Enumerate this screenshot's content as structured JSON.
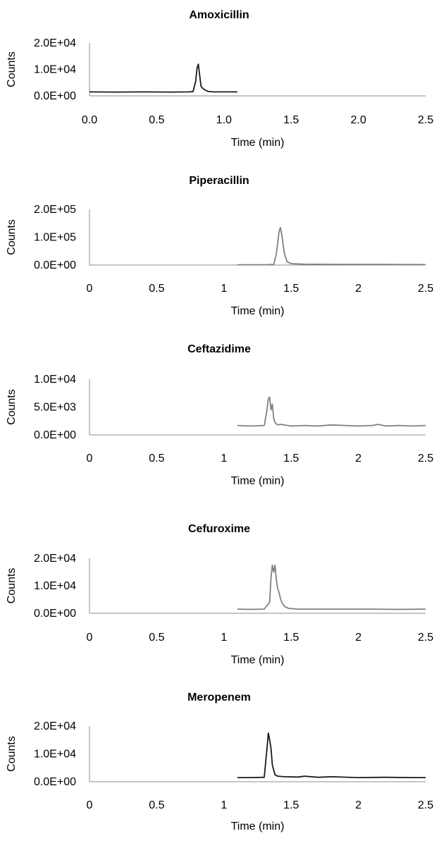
{
  "chart_data": [
    {
      "type": "line",
      "title": "Amoxicillin",
      "xlabel": "Time (min)",
      "ylabel": "Counts",
      "xlim": [
        0,
        2.5
      ],
      "ylim": [
        0,
        20000
      ],
      "x_tick_labels": [
        "0.0",
        "0.5",
        "1.0",
        "1.5",
        "2.0",
        "2.5"
      ],
      "y_tick_labels": [
        "0.0E+00",
        "1.0E+04",
        "2.0E+04"
      ],
      "line_color": "#1a1a1a",
      "series": [
        {
          "x": [
            0.0,
            0.2,
            0.4,
            0.6,
            0.74,
            0.77,
            0.79,
            0.8,
            0.81,
            0.82,
            0.83,
            0.85,
            0.88,
            0.92,
            1.0,
            1.1
          ],
          "y": [
            1500,
            1450,
            1500,
            1450,
            1500,
            1600,
            5500,
            10500,
            12000,
            7500,
            3500,
            2500,
            1700,
            1500,
            1500,
            1500
          ]
        }
      ]
    },
    {
      "type": "line",
      "title": "Piperacillin",
      "xlabel": "Time (min)",
      "ylabel": "Counts",
      "xlim": [
        0,
        2.5
      ],
      "ylim": [
        0,
        200000
      ],
      "x_tick_labels": [
        "0",
        "0.5",
        "1",
        "1.5",
        "2",
        "2.5"
      ],
      "y_tick_labels": [
        "0.0E+00",
        "1.0E+05",
        "2.0E+05"
      ],
      "line_color": "#808080",
      "series": [
        {
          "x": [
            1.1,
            1.3,
            1.37,
            1.39,
            1.41,
            1.42,
            1.43,
            1.45,
            1.47,
            1.5,
            1.6,
            1.8,
            2.0,
            2.2,
            2.5
          ],
          "y": [
            1000,
            1000,
            2000,
            40000,
            120000,
            135000,
            110000,
            40000,
            12000,
            5000,
            3000,
            2500,
            2000,
            2000,
            1500
          ]
        }
      ]
    },
    {
      "type": "line",
      "title": "Ceftazidime",
      "xlabel": "Time (min)",
      "ylabel": "Counts",
      "xlim": [
        0,
        2.5
      ],
      "ylim": [
        0,
        10000
      ],
      "x_tick_labels": [
        "0",
        "0.5",
        "1",
        "1.5",
        "2",
        "2.5"
      ],
      "y_tick_labels": [
        "0.0E+00",
        "5.0E+03",
        "1.0E+04"
      ],
      "line_color": "#808080",
      "series": [
        {
          "x": [
            1.1,
            1.2,
            1.3,
            1.32,
            1.33,
            1.34,
            1.35,
            1.36,
            1.37,
            1.38,
            1.4,
            1.42,
            1.5,
            1.6,
            1.7,
            1.8,
            1.9,
            2.0,
            2.1,
            2.15,
            2.2,
            2.3,
            2.4,
            2.5
          ],
          "y": [
            1700,
            1600,
            1700,
            4500,
            6500,
            6800,
            4500,
            5500,
            3000,
            2200,
            1800,
            1900,
            1600,
            1700,
            1600,
            1800,
            1700,
            1600,
            1700,
            1900,
            1600,
            1700,
            1600,
            1700
          ]
        }
      ]
    },
    {
      "type": "line",
      "title": "Cefuroxime",
      "xlabel": "Time (min)",
      "ylabel": "Counts",
      "xlim": [
        0,
        2.5
      ],
      "ylim": [
        0,
        20000
      ],
      "x_tick_labels": [
        "0",
        "0.5",
        "1",
        "1.5",
        "2",
        "2.5"
      ],
      "y_tick_labels": [
        "0.0E+00",
        "1.0E+04",
        "2.0E+04"
      ],
      "line_color": "#808080",
      "series": [
        {
          "x": [
            1.1,
            1.2,
            1.3,
            1.34,
            1.35,
            1.36,
            1.37,
            1.38,
            1.39,
            1.4,
            1.41,
            1.42,
            1.43,
            1.45,
            1.48,
            1.55,
            1.7,
            1.9,
            2.1,
            2.3,
            2.5
          ],
          "y": [
            1500,
            1400,
            1500,
            4000,
            13000,
            17500,
            15000,
            17500,
            12000,
            9000,
            7500,
            5500,
            4000,
            2500,
            1800,
            1500,
            1500,
            1500,
            1500,
            1400,
            1500
          ]
        }
      ]
    },
    {
      "type": "line",
      "title": "Meropenem",
      "xlabel": "Time (min)",
      "ylabel": "Counts",
      "xlim": [
        0,
        2.5
      ],
      "ylim": [
        0,
        20000
      ],
      "x_tick_labels": [
        "0",
        "0.5",
        "1",
        "1.5",
        "2",
        "2.5"
      ],
      "y_tick_labels": [
        "0.0E+00",
        "1.0E+04",
        "2.0E+04"
      ],
      "line_color": "#1a1a1a",
      "series": [
        {
          "x": [
            1.1,
            1.2,
            1.3,
            1.32,
            1.33,
            1.34,
            1.35,
            1.36,
            1.38,
            1.4,
            1.45,
            1.55,
            1.6,
            1.7,
            1.8,
            2.0,
            2.2,
            2.4,
            2.5
          ],
          "y": [
            1500,
            1500,
            1600,
            12000,
            17500,
            15000,
            12000,
            6000,
            2500,
            2000,
            1800,
            1700,
            2000,
            1600,
            1800,
            1500,
            1600,
            1500,
            1500
          ]
        }
      ]
    }
  ]
}
